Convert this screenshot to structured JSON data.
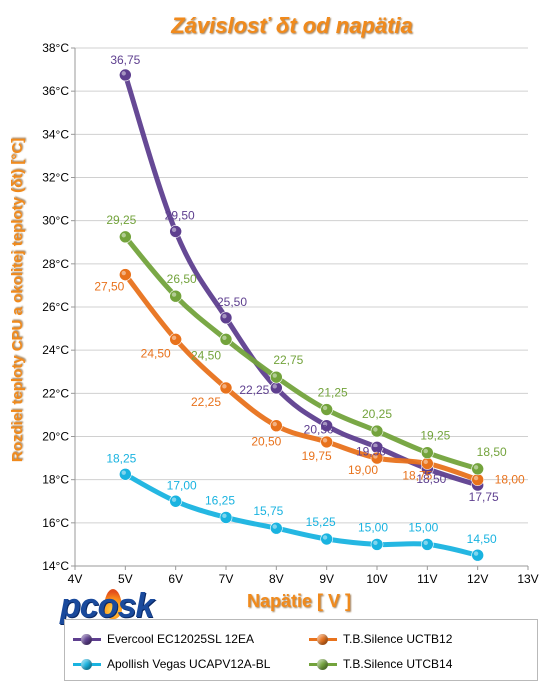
{
  "chart_data": {
    "type": "line",
    "title": "Závislosť δt od napätia",
    "xlabel": "Napätie [ V ]",
    "ylabel": "Rozdiel teploty CPU a okolitej teploty (δt) [°C]",
    "x": [
      5,
      6,
      7,
      8,
      9,
      10,
      11,
      12
    ],
    "xlim": [
      4,
      13
    ],
    "ylim": [
      14,
      38
    ],
    "x_ticks": [
      "4V",
      "5V",
      "6V",
      "7V",
      "8V",
      "9V",
      "10V",
      "11V",
      "12V",
      "13V"
    ],
    "y_ticks": [
      "14°C",
      "16°C",
      "18°C",
      "20°C",
      "22°C",
      "24°C",
      "26°C",
      "28°C",
      "30°C",
      "32°C",
      "34°C",
      "36°C",
      "38°C"
    ],
    "grid": "horizontal",
    "legend_position": "bottom",
    "series": [
      {
        "name": "Evercool EC12025SL 12EA",
        "color": "#5e3f8f",
        "values": [
          36.75,
          29.5,
          25.5,
          22.25,
          20.5,
          19.5,
          18.5,
          17.75
        ],
        "labels": [
          "36,75",
          "29,50",
          "25,50",
          "22,25",
          "20,50",
          "19,50",
          "18,50",
          "17,75"
        ]
      },
      {
        "name": "T.B.Silence UCTB12",
        "color": "#e8721c",
        "values": [
          27.5,
          24.5,
          22.25,
          20.5,
          19.75,
          19.0,
          18.75,
          18.0
        ],
        "labels": [
          "27,50",
          "24,50",
          "22,25",
          "20,50",
          "19,75",
          "19,00",
          "18,75",
          "18,00"
        ]
      },
      {
        "name": "Apollish Vegas UCAPV12A-BL",
        "color": "#19b3e0",
        "values": [
          18.25,
          17.0,
          16.25,
          15.75,
          15.25,
          15.0,
          15.0,
          14.5
        ],
        "labels": [
          "18,25",
          "17,00",
          "16,25",
          "15,75",
          "15,25",
          "15,00",
          "15,00",
          "14,50"
        ]
      },
      {
        "name": "T.B.Silence UTCB14",
        "color": "#73a33c",
        "values": [
          29.25,
          26.5,
          24.5,
          22.75,
          21.25,
          20.25,
          19.25,
          18.5
        ],
        "labels": [
          "29,25",
          "26,50",
          "24,50",
          "22,75",
          "21,25",
          "20,25",
          "19,25",
          "18,50"
        ]
      }
    ]
  },
  "logo_text": "pcosk",
  "colors": {
    "title": "#f08a1c",
    "axis_label": "#f08a1c",
    "grid": "#d0d0d0",
    "axis": "#999999"
  }
}
